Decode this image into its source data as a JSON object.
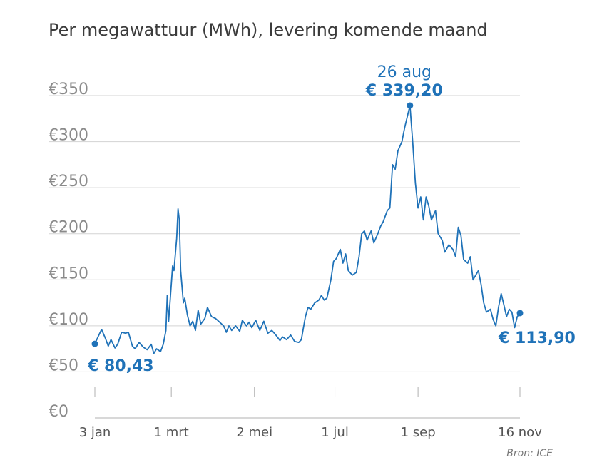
{
  "chart_data": {
    "type": "line",
    "title": "Per megawattuur (MWh), levering komende maand",
    "source": "Bron: ICE",
    "xlabel": "",
    "ylabel": "",
    "ylim": [
      0,
      350
    ],
    "yticks": [
      0,
      50,
      100,
      150,
      200,
      250,
      300,
      350
    ],
    "ytick_labels": [
      "€0",
      "€50",
      "€100",
      "€150",
      "€200",
      "€250",
      "€300",
      "€350"
    ],
    "xlim": [
      "3 jan",
      "16 nov"
    ],
    "xticks": [
      "3 jan",
      "1 mrt",
      "2 mei",
      "1 jul",
      "1 sep",
      "16 nov"
    ],
    "grid": true,
    "color": "#1f72b8",
    "series": [
      {
        "values": [
          [
            "3 jan",
            80.43
          ],
          [
            "6 jan",
            90
          ],
          [
            "8 jan",
            96
          ],
          [
            "11 jan",
            86
          ],
          [
            "13 jan",
            78
          ],
          [
            "15 jan",
            85
          ],
          [
            "18 jan",
            76
          ],
          [
            "20 jan",
            80
          ],
          [
            "23 jan",
            93
          ],
          [
            "26 jan",
            92
          ],
          [
            "28 jan",
            93
          ],
          [
            "31 jan",
            78
          ],
          [
            "2 feb",
            75
          ],
          [
            "5 feb",
            82
          ],
          [
            "8 feb",
            77
          ],
          [
            "11 feb",
            74
          ],
          [
            "14 feb",
            80
          ],
          [
            "16 feb",
            70
          ],
          [
            "18 feb",
            75
          ],
          [
            "21 feb",
            72
          ],
          [
            "23 feb",
            80
          ],
          [
            "25 feb",
            95
          ],
          [
            "26 feb",
            133
          ],
          [
            "27 feb",
            105
          ],
          [
            "28 feb",
            125
          ],
          [
            "2 mrt",
            165
          ],
          [
            "3 mrt",
            160
          ],
          [
            "5 mrt",
            195
          ],
          [
            "6 mrt",
            227
          ],
          [
            "7 mrt",
            215
          ],
          [
            "8 mrt",
            160
          ],
          [
            "10 mrt",
            125
          ],
          [
            "11 mrt",
            130
          ],
          [
            "13 mrt",
            112
          ],
          [
            "15 mrt",
            100
          ],
          [
            "17 mrt",
            105
          ],
          [
            "19 mrt",
            95
          ],
          [
            "21 mrt",
            117
          ],
          [
            "23 mrt",
            102
          ],
          [
            "26 mrt",
            108
          ],
          [
            "28 mrt",
            120
          ],
          [
            "31 mrt",
            110
          ],
          [
            "3 apr",
            108
          ],
          [
            "6 apr",
            104
          ],
          [
            "9 apr",
            100
          ],
          [
            "11 apr",
            93
          ],
          [
            "13 apr",
            100
          ],
          [
            "15 apr",
            95
          ],
          [
            "18 apr",
            100
          ],
          [
            "21 apr",
            94
          ],
          [
            "23 apr",
            106
          ],
          [
            "26 apr",
            100
          ],
          [
            "28 apr",
            104
          ],
          [
            "30 apr",
            98
          ],
          [
            "3 mei",
            106
          ],
          [
            "6 mei",
            95
          ],
          [
            "9 mei",
            105
          ],
          [
            "12 mei",
            92
          ],
          [
            "15 mei",
            95
          ],
          [
            "18 mei",
            90
          ],
          [
            "21 mei",
            84
          ],
          [
            "23 mei",
            88
          ],
          [
            "26 mei",
            85
          ],
          [
            "29 mei",
            90
          ],
          [
            "1 jun",
            83
          ],
          [
            "4 jun",
            82
          ],
          [
            "6 jun",
            85
          ],
          [
            "9 jun",
            110
          ],
          [
            "11 jun",
            120
          ],
          [
            "13 jun",
            118
          ],
          [
            "16 jun",
            125
          ],
          [
            "19 jun",
            128
          ],
          [
            "21 jun",
            133
          ],
          [
            "23 jun",
            128
          ],
          [
            "25 jun",
            130
          ],
          [
            "28 jun",
            150
          ],
          [
            "30 jun",
            170
          ],
          [
            "2 jul",
            173
          ],
          [
            "5 jul",
            183
          ],
          [
            "7 jul",
            168
          ],
          [
            "9 jul",
            178
          ],
          [
            "11 jul",
            160
          ],
          [
            "14 jul",
            155
          ],
          [
            "17 jul",
            158
          ],
          [
            "19 jul",
            175
          ],
          [
            "21 jul",
            200
          ],
          [
            "23 jul",
            203
          ],
          [
            "25 jul",
            193
          ],
          [
            "28 jul",
            203
          ],
          [
            "30 jul",
            190
          ],
          [
            "2 aug",
            200
          ],
          [
            "4 aug",
            208
          ],
          [
            "6 aug",
            213
          ],
          [
            "9 aug",
            225
          ],
          [
            "11 aug",
            228
          ],
          [
            "13 aug",
            275
          ],
          [
            "15 aug",
            270
          ],
          [
            "17 aug",
            290
          ],
          [
            "20 aug",
            300
          ],
          [
            "22 aug",
            315
          ],
          [
            "26 aug",
            339.2
          ],
          [
            "28 aug",
            300
          ],
          [
            "30 aug",
            255
          ],
          [
            "1 sep",
            228
          ],
          [
            "3 sep",
            240
          ],
          [
            "5 sep",
            215
          ],
          [
            "7 sep",
            240
          ],
          [
            "9 sep",
            230
          ],
          [
            "11 sep",
            215
          ],
          [
            "14 sep",
            225
          ],
          [
            "16 sep",
            200
          ],
          [
            "19 sep",
            193
          ],
          [
            "21 sep",
            180
          ],
          [
            "24 sep",
            188
          ],
          [
            "27 sep",
            183
          ],
          [
            "29 sep",
            175
          ],
          [
            "1 okt",
            207
          ],
          [
            "3 okt",
            198
          ],
          [
            "5 okt",
            172
          ],
          [
            "8 okt",
            168
          ],
          [
            "10 okt",
            175
          ],
          [
            "12 okt",
            150
          ],
          [
            "14 okt",
            155
          ],
          [
            "16 okt",
            160
          ],
          [
            "18 okt",
            145
          ],
          [
            "20 okt",
            125
          ],
          [
            "22 okt",
            115
          ],
          [
            "25 okt",
            118
          ],
          [
            "27 okt",
            107
          ],
          [
            "29 okt",
            100
          ],
          [
            "31 okt",
            120
          ],
          [
            "2 nov",
            135
          ],
          [
            "4 nov",
            123
          ],
          [
            "6 nov",
            110
          ],
          [
            "8 nov",
            118
          ],
          [
            "10 nov",
            115
          ],
          [
            "12 nov",
            98
          ],
          [
            "14 nov",
            110
          ],
          [
            "16 nov",
            113.9
          ]
        ]
      }
    ],
    "annotations": [
      {
        "label": "€ 80,43",
        "x": "3 jan",
        "y": 80.43
      },
      {
        "date_label": "26 aug",
        "label": "€ 339,20",
        "x": "26 aug",
        "y": 339.2
      },
      {
        "label": "€ 113,90",
        "x": "16 nov",
        "y": 113.9
      }
    ]
  }
}
